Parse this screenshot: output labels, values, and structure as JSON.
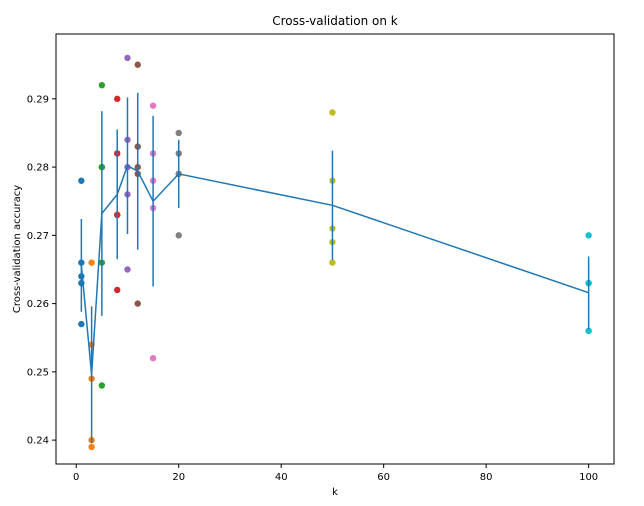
{
  "chart_data": {
    "type": "scatter",
    "title": "Cross-validation on k",
    "xlabel": "k",
    "ylabel": "Cross-validation accuracy",
    "xlim": [
      -3.95,
      104.95
    ],
    "ylim": [
      0.2365,
      0.2995
    ],
    "xticks": [
      0,
      20,
      40,
      60,
      80,
      100
    ],
    "yticks": [
      0.24,
      0.25,
      0.26,
      0.27,
      0.28,
      0.29
    ],
    "ytick_labels": [
      "0.24",
      "0.25",
      "0.26",
      "0.27",
      "0.28",
      "0.29"
    ],
    "grid": false,
    "scatter_points": [
      {
        "k": 1,
        "color": "#1f77b4",
        "values": [
          0.263,
          0.257,
          0.264,
          0.278,
          0.266
        ]
      },
      {
        "k": 3,
        "color": "#ff7f0e",
        "values": [
          0.239,
          0.249,
          0.24,
          0.266,
          0.254
        ]
      },
      {
        "k": 5,
        "color": "#2ca02c",
        "values": [
          0.248,
          0.266,
          0.28,
          0.292,
          0.28
        ]
      },
      {
        "k": 8,
        "color": "#d62728",
        "values": [
          0.262,
          0.282,
          0.273,
          0.29,
          0.273
        ]
      },
      {
        "k": 10,
        "color": "#9467bd",
        "values": [
          0.265,
          0.296,
          0.276,
          0.284,
          0.28
        ]
      },
      {
        "k": 12,
        "color": "#8c564b",
        "values": [
          0.26,
          0.295,
          0.279,
          0.283,
          0.28
        ]
      },
      {
        "k": 15,
        "color": "#e377c2",
        "values": [
          0.252,
          0.289,
          0.274,
          0.282,
          0.278
        ]
      },
      {
        "k": 20,
        "color": "#7f7f7f",
        "values": [
          0.27,
          0.285,
          0.279,
          0.282,
          0.279
        ]
      },
      {
        "k": 50,
        "color": "#bcbd22",
        "values": [
          0.266,
          0.288,
          0.269,
          0.278,
          0.271
        ]
      },
      {
        "k": 100,
        "color": "#17becf",
        "values": [
          0.256,
          0.27,
          0.263,
          0.263,
          0.256
        ]
      }
    ],
    "series": [
      {
        "line_color": "#1f77b4",
        "x": [
          1,
          3,
          5,
          8,
          10,
          12,
          15,
          20,
          50,
          100
        ],
        "mean": [
          0.2656,
          0.2496,
          0.2732,
          0.276,
          0.2802,
          0.2794,
          0.275,
          0.279,
          0.2744,
          0.2616
        ],
        "std": [
          0.0068,
          0.01,
          0.015,
          0.0095,
          0.01,
          0.0115,
          0.0125,
          0.005,
          0.008,
          0.0053
        ]
      }
    ]
  }
}
